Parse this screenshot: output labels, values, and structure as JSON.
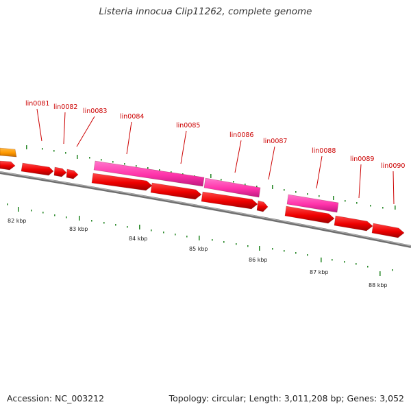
{
  "title": "Listeria innocua Clip11262, complete genome",
  "accession": "Accession: NC_003212",
  "stats": "Topology: circular; Length: 3,011,208 bp; Genes: 3,052",
  "colors": {
    "backbone": "#888888",
    "forward_gene": "#ee0000",
    "reverse_gene": "#ff33aa",
    "other_gene": "#ff9900",
    "label": "#cc0000",
    "tick": "#2e8b2e"
  },
  "gene_labels": [
    "lin0081",
    "lin0082",
    "lin0083",
    "lin0084",
    "lin0085",
    "lin0086",
    "lin0087",
    "lin0088",
    "lin0089",
    "lin0090"
  ],
  "kbp_labels": [
    "82 kbp",
    "83 kbp",
    "84 kbp",
    "85 kbp",
    "86 kbp",
    "87 kbp",
    "88 kbp"
  ]
}
